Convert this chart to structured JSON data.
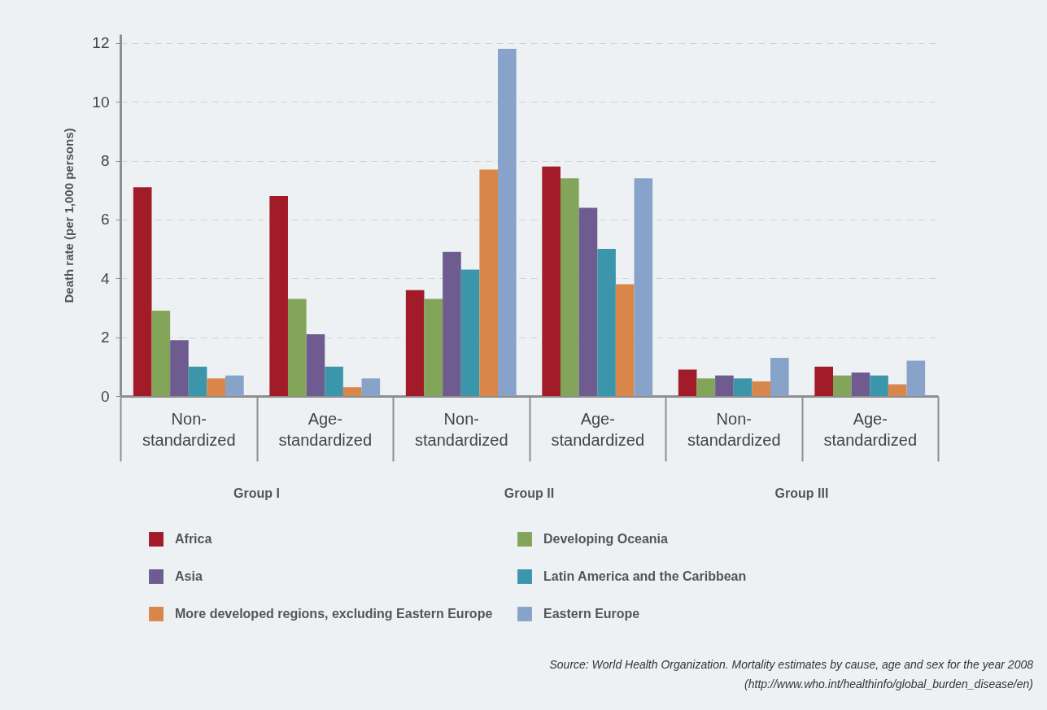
{
  "chart_data": {
    "type": "bar",
    "ylabel": "Death rate (per 1,000 persons)",
    "categories": [
      "Non-standardized",
      "Age-standardized",
      "Non-standardized",
      "Age-standardized",
      "Non-standardized",
      "Age-standardized"
    ],
    "series": [
      {
        "name": "Africa",
        "color": "#a11b29",
        "values": [
          7.1,
          6.8,
          3.6,
          7.8,
          0.9,
          1.0
        ]
      },
      {
        "name": "Developing Oceania",
        "color": "#83a55a",
        "values": [
          2.9,
          3.3,
          3.3,
          7.4,
          0.6,
          0.7
        ]
      },
      {
        "name": "Asia",
        "color": "#6e5c90",
        "values": [
          1.9,
          2.1,
          4.9,
          6.4,
          0.7,
          0.8
        ]
      },
      {
        "name": "Latin America and the Caribbean",
        "color": "#3b96ab",
        "values": [
          1.0,
          1.0,
          4.3,
          5.0,
          0.6,
          0.7
        ]
      },
      {
        "name": "More developed regions, excluding Eastern Europe",
        "color": "#d9864a",
        "values": [
          0.6,
          0.3,
          7.7,
          3.8,
          0.5,
          0.4
        ]
      },
      {
        "name": "Eastern Europe",
        "color": "#87a3ca",
        "values": [
          0.7,
          0.6,
          11.8,
          7.4,
          1.3,
          1.2
        ]
      }
    ],
    "ylim": [
      0,
      12.3
    ],
    "yticks": [
      0,
      2,
      4,
      6,
      8,
      10,
      12
    ],
    "grid": "y",
    "legend": "bottom",
    "annotations": [
      "Group I",
      "Group II",
      "Group III",
      "Source: World Health Organization. Mortality estimates by cause, age and sex for the year 2008",
      "(http://www.who.int/healthinfo/global_burden_disease/en)"
    ]
  }
}
